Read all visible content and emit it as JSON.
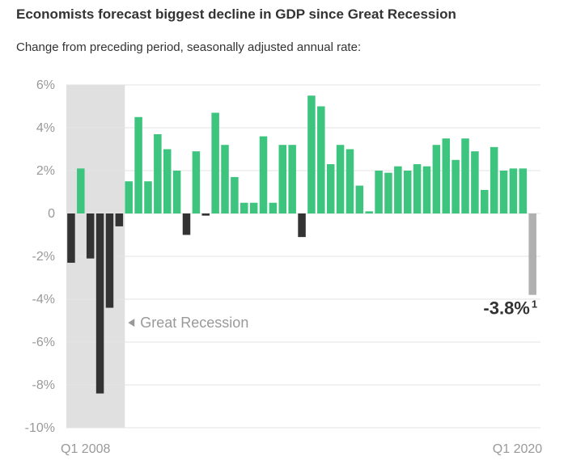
{
  "header": {
    "title": "Economists forecast biggest decline in GDP since Great Recession",
    "subtitle": "Change from preceding period, seasonally adjusted annual rate:"
  },
  "chart_data": {
    "type": "bar",
    "ylim": [
      -10,
      6
    ],
    "yticks": [
      {
        "value": 6,
        "label": "6%"
      },
      {
        "value": 4,
        "label": "4%"
      },
      {
        "value": 2,
        "label": "2%"
      },
      {
        "value": 0,
        "label": "0"
      },
      {
        "value": -2,
        "label": "-2%"
      },
      {
        "value": -4,
        "label": "-4%"
      },
      {
        "value": -6,
        "label": "-6%"
      },
      {
        "value": -8,
        "label": "-8%"
      },
      {
        "value": -10,
        "label": "-10%"
      }
    ],
    "x_start_label": "Q1 2008",
    "x_end_label": "Q1 2020",
    "grid": true,
    "shaded_region": {
      "label": "Great Recession",
      "bars": 6
    },
    "values": [
      -2.3,
      2.1,
      -2.1,
      -8.4,
      -4.4,
      -0.6,
      1.5,
      4.5,
      1.5,
      3.7,
      3.0,
      2.0,
      -1.0,
      2.9,
      -0.1,
      4.7,
      3.2,
      1.7,
      0.5,
      0.5,
      3.6,
      0.5,
      3.2,
      3.2,
      -1.1,
      5.5,
      5.0,
      2.3,
      3.2,
      3.0,
      1.3,
      0.1,
      2.0,
      1.9,
      2.2,
      2.0,
      2.3,
      2.2,
      3.2,
      3.5,
      2.5,
      3.5,
      2.9,
      1.1,
      3.1,
      2.0,
      2.1,
      2.1,
      -3.8
    ],
    "final_value_label": "-3.8%",
    "final_value_footnote": "1",
    "colors": {
      "positive": "#3dc47e",
      "negative": "#333333",
      "forecast": "#b0b0b0",
      "shade": "#e0e0e0",
      "grid": "#e3e3e3",
      "axis_text": "#999999"
    }
  }
}
